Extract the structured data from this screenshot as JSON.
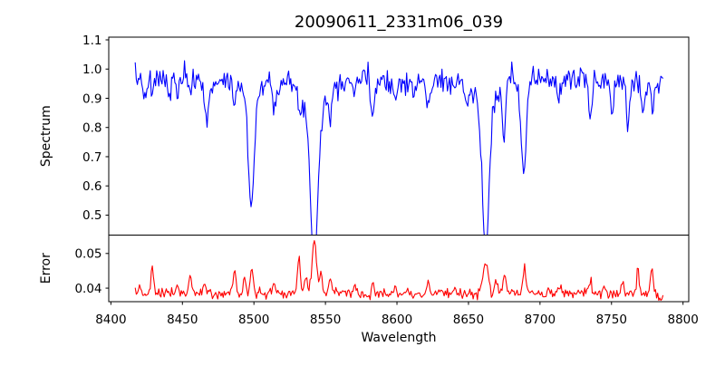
{
  "figure": {
    "title": "20090611_2331m06_039",
    "xlabel": "Wavelength",
    "background_color": "#ffffff",
    "spine_color": "#000000"
  },
  "chart_data": {
    "type": "line",
    "title": "20090611_2331m06_039",
    "xlabel": "Wavelength",
    "xlim": [
      8398.5,
      8804
    ],
    "xtick_values": [
      8400,
      8450,
      8500,
      8550,
      8600,
      8650,
      8700,
      8750,
      8800
    ],
    "xtick_labels": [
      "8400",
      "8450",
      "8500",
      "8550",
      "8600",
      "8650",
      "8700",
      "8750",
      "8800"
    ],
    "x_start": 8417,
    "x_end": 8786,
    "x_step": 0.75,
    "noise_seed": 7,
    "panels": [
      {
        "name": "spectrum",
        "ylabel": "Spectrum",
        "line_color": "#0000ff",
        "ylim": [
          0.4316,
          1.1093
        ],
        "ytick_values": [
          0.5,
          0.6,
          0.7,
          0.8,
          0.9,
          1.0,
          1.1
        ],
        "ytick_labels": [
          "0.5",
          "0.6",
          "0.7",
          "0.8",
          "0.9",
          "1.0",
          "1.1"
        ],
        "continuum": 0.962,
        "noise_sigma": 0.021,
        "absorption_lines": [
          {
            "center": 8424.3,
            "depth": 0.09,
            "sigma": 1.0
          },
          {
            "center": 8429.0,
            "depth": 0.07,
            "sigma": 0.8
          },
          {
            "center": 8440.5,
            "depth": 0.075,
            "sigma": 1.0
          },
          {
            "center": 8446.5,
            "depth": 0.06,
            "sigma": 0.9
          },
          {
            "center": 8455.5,
            "depth": 0.07,
            "sigma": 0.9
          },
          {
            "center": 8467.5,
            "depth": 0.14,
            "sigma": 1.6
          },
          {
            "center": 8486.3,
            "depth": 0.075,
            "sigma": 1.0
          },
          {
            "center": 8498.1,
            "depth": 0.37,
            "sigma": 2.0,
            "wing_depth": 0.05,
            "wing_sigma": 5.0
          },
          {
            "center": 8514.2,
            "depth": 0.075,
            "sigma": 1.2
          },
          {
            "center": 8531.3,
            "depth": 0.05,
            "sigma": 1.0
          },
          {
            "center": 8542.1,
            "depth": 0.5,
            "sigma": 2.4,
            "wing_depth": 0.13,
            "wing_sigma": 7.5
          },
          {
            "center": 8553.5,
            "depth": 0.09,
            "sigma": 1.1
          },
          {
            "center": 8570.0,
            "depth": 0.05,
            "sigma": 1.0
          },
          {
            "center": 8582.8,
            "depth": 0.115,
            "sigma": 1.4
          },
          {
            "center": 8598.8,
            "depth": 0.08,
            "sigma": 1.2
          },
          {
            "center": 8611.9,
            "depth": 0.06,
            "sigma": 1.1
          },
          {
            "center": 8621.7,
            "depth": 0.09,
            "sigma": 1.3
          },
          {
            "center": 8648.6,
            "depth": 0.065,
            "sigma": 1.2
          },
          {
            "center": 8662.1,
            "depth": 0.48,
            "sigma": 2.2,
            "wing_depth": 0.1,
            "wing_sigma": 7.0
          },
          {
            "center": 8674.8,
            "depth": 0.2,
            "sigma": 1.1
          },
          {
            "center": 8688.6,
            "depth": 0.31,
            "sigma": 1.9
          },
          {
            "center": 8713.3,
            "depth": 0.08,
            "sigma": 1.2
          },
          {
            "center": 8735.0,
            "depth": 0.125,
            "sigma": 1.3
          },
          {
            "center": 8750.2,
            "depth": 0.12,
            "sigma": 1.1
          },
          {
            "center": 8761.5,
            "depth": 0.145,
            "sigma": 1.0
          },
          {
            "center": 8772.1,
            "depth": 0.115,
            "sigma": 1.0
          },
          {
            "center": 8778.6,
            "depth": 0.1,
            "sigma": 0.9
          }
        ]
      },
      {
        "name": "error",
        "ylabel": "Error",
        "line_color": "#ff0000",
        "ylim": [
          0.0361,
          0.0553
        ],
        "ytick_values": [
          0.04,
          0.05
        ],
        "ytick_labels": [
          "0.04",
          "0.05"
        ],
        "baseline": 0.0384,
        "noise_sigma": 0.0007,
        "peaks": [
          {
            "center": 8420.5,
            "amp": 0.003,
            "sigma": 0.8
          },
          {
            "center": 8429.0,
            "amp": 0.0088,
            "sigma": 0.8
          },
          {
            "center": 8446.5,
            "amp": 0.003,
            "sigma": 0.8
          },
          {
            "center": 8455.6,
            "amp": 0.0056,
            "sigma": 0.9
          },
          {
            "center": 8465.5,
            "amp": 0.0038,
            "sigma": 0.9
          },
          {
            "center": 8486.4,
            "amp": 0.006,
            "sigma": 1.0
          },
          {
            "center": 8493.6,
            "amp": 0.005,
            "sigma": 0.9
          },
          {
            "center": 8498.6,
            "amp": 0.0068,
            "sigma": 1.1
          },
          {
            "center": 8514.0,
            "amp": 0.003,
            "sigma": 0.9
          },
          {
            "center": 8531.4,
            "amp": 0.0096,
            "sigma": 1.1
          },
          {
            "center": 8536.2,
            "amp": 0.005,
            "sigma": 0.9
          },
          {
            "center": 8542.3,
            "amp": 0.016,
            "sigma": 1.5
          },
          {
            "center": 8547.0,
            "amp": 0.0058,
            "sigma": 1.0
          },
          {
            "center": 8553.6,
            "amp": 0.0052,
            "sigma": 0.9
          },
          {
            "center": 8570.2,
            "amp": 0.0024,
            "sigma": 0.9
          },
          {
            "center": 8583.0,
            "amp": 0.0036,
            "sigma": 1.0
          },
          {
            "center": 8599.0,
            "amp": 0.0028,
            "sigma": 0.9
          },
          {
            "center": 8621.9,
            "amp": 0.0034,
            "sigma": 1.0
          },
          {
            "center": 8640.2,
            "amp": 0.0022,
            "sigma": 0.9
          },
          {
            "center": 8661.9,
            "amp": 0.0096,
            "sigma": 1.7
          },
          {
            "center": 8669.3,
            "amp": 0.004,
            "sigma": 1.0
          },
          {
            "center": 8675.1,
            "amp": 0.0052,
            "sigma": 0.9
          },
          {
            "center": 8689.0,
            "amp": 0.007,
            "sigma": 1.1
          },
          {
            "center": 8713.6,
            "amp": 0.0028,
            "sigma": 0.9
          },
          {
            "center": 8735.2,
            "amp": 0.0032,
            "sigma": 0.9
          },
          {
            "center": 8745.3,
            "amp": 0.0026,
            "sigma": 0.9
          },
          {
            "center": 8757.6,
            "amp": 0.0036,
            "sigma": 0.8
          },
          {
            "center": 8768.4,
            "amp": 0.007,
            "sigma": 0.8
          },
          {
            "center": 8778.1,
            "amp": 0.0082,
            "sigma": 0.8
          },
          {
            "center": 8784.5,
            "amp": -0.0018,
            "sigma": 1.2
          }
        ]
      }
    ]
  }
}
